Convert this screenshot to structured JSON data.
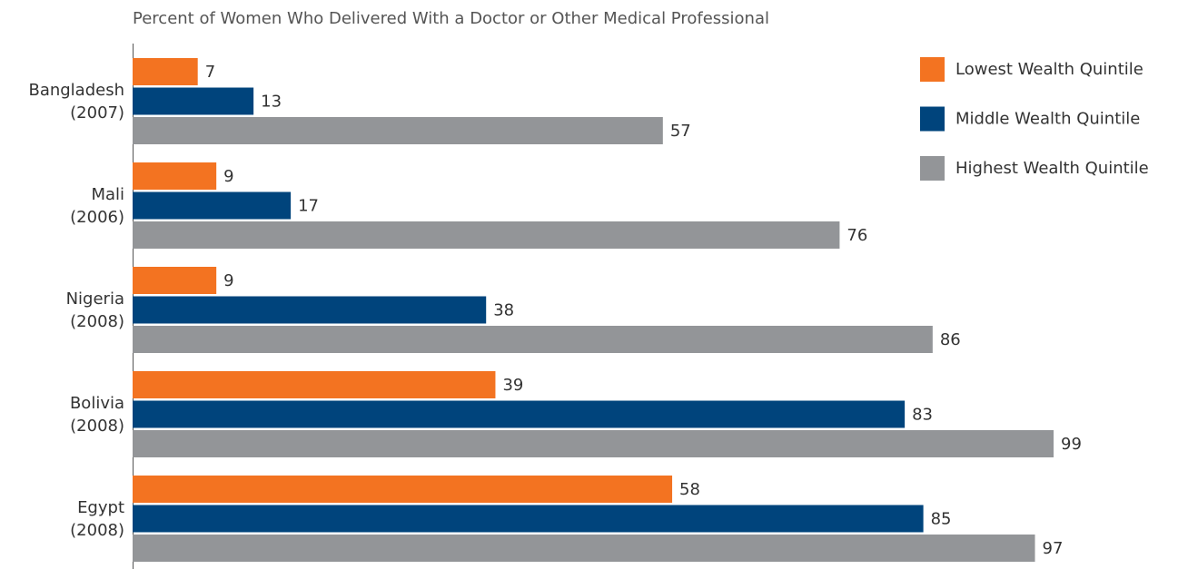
{
  "chart_data": {
    "type": "bar",
    "orientation": "horizontal",
    "title": "Percent of Women Who Delivered With a Doctor or Other Medical Professional",
    "categories": [
      "Bangladesh\n(2007)",
      "Mali\n(2006)",
      "Nigeria\n(2008)",
      "Bolivia\n(2008)",
      "Egypt\n(2008)"
    ],
    "series": [
      {
        "name": "Lowest Wealth Quintile",
        "color": "#f37321",
        "values": [
          7,
          9,
          9,
          39,
          58
        ]
      },
      {
        "name": "Middle Wealth Quintile",
        "color": "#00447c",
        "values": [
          13,
          17,
          38,
          83,
          85
        ]
      },
      {
        "name": "Highest Wealth Quintile",
        "color": "#939598",
        "values": [
          57,
          76,
          86,
          99,
          97
        ]
      }
    ],
    "legend": "top-right"
  }
}
